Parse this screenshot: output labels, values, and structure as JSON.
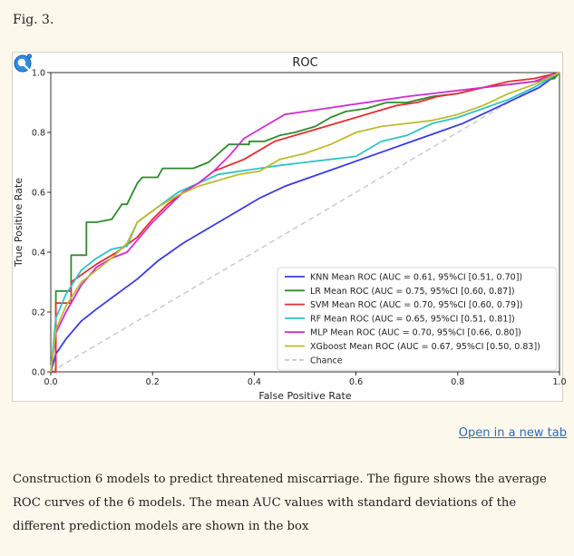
{
  "figure_label": "Fig. 3.",
  "open_link": "Open in a new tab",
  "caption": "Construction 6 models to predict threatened miscarriage. The figure shows the average ROC curves of the 6 models. The mean AUC values with standard deviations of the different prediction models are shown in the box",
  "icons": {
    "zoom": "magnifier-icon"
  },
  "colors": {
    "link": "#2a6db5",
    "background": "#fdf8ec"
  },
  "chart_data": {
    "type": "line",
    "title": "ROC",
    "xlabel": "False Positive Rate",
    "ylabel": "True Positive Rate",
    "xlim": [
      0,
      1
    ],
    "ylim": [
      0,
      1
    ],
    "xticks": [
      "0.0",
      "0.2",
      "0.4",
      "0.6",
      "0.8",
      "1.0"
    ],
    "yticks": [
      "0.0",
      "0.2",
      "0.4",
      "0.6",
      "0.8",
      "1.0"
    ],
    "legend_position": "lower-right",
    "grid": false,
    "series": [
      {
        "name": "KNN Mean ROC (AUC = 0.61, 95%CI [0.51, 0.70])",
        "color": "#3b3be6",
        "x": [
          0,
          0.01,
          0.03,
          0.06,
          0.09,
          0.13,
          0.17,
          0.21,
          0.26,
          0.31,
          0.36,
          0.41,
          0.46,
          0.51,
          0.56,
          0.61,
          0.66,
          0.71,
          0.76,
          0.81,
          0.86,
          0.91,
          0.96,
          1.0
        ],
        "y": [
          0,
          0.06,
          0.11,
          0.17,
          0.21,
          0.26,
          0.31,
          0.37,
          0.43,
          0.48,
          0.53,
          0.58,
          0.62,
          0.65,
          0.68,
          0.71,
          0.74,
          0.77,
          0.8,
          0.83,
          0.87,
          0.91,
          0.95,
          1.0
        ]
      },
      {
        "name": "LR Mean ROC (AUC = 0.75, 95%CI [0.60, 0.87])",
        "color": "#2e8b2e",
        "x": [
          0,
          0.01,
          0.01,
          0.04,
          0.04,
          0.07,
          0.07,
          0.09,
          0.12,
          0.14,
          0.15,
          0.17,
          0.18,
          0.21,
          0.22,
          0.25,
          0.28,
          0.31,
          0.35,
          0.39,
          0.39,
          0.42,
          0.45,
          0.48,
          0.52,
          0.55,
          0.58,
          0.62,
          0.66,
          0.7,
          0.75,
          0.8,
          0.85,
          0.9,
          0.95,
          0.99,
          1.0
        ],
        "y": [
          0,
          0,
          0.27,
          0.27,
          0.39,
          0.39,
          0.5,
          0.5,
          0.51,
          0.56,
          0.56,
          0.63,
          0.65,
          0.65,
          0.68,
          0.68,
          0.68,
          0.7,
          0.76,
          0.76,
          0.77,
          0.77,
          0.79,
          0.8,
          0.82,
          0.85,
          0.87,
          0.88,
          0.9,
          0.9,
          0.92,
          0.93,
          0.95,
          0.96,
          0.97,
          0.98,
          1.0
        ]
      },
      {
        "name": "SVM Mean ROC (AUC = 0.70, 95%CI [0.60, 0.79])",
        "color": "#e62e2e",
        "x": [
          0,
          0.01,
          0.01,
          0.04,
          0.04,
          0.09,
          0.13,
          0.17,
          0.2,
          0.23,
          0.26,
          0.29,
          0.32,
          0.35,
          0.38,
          0.41,
          0.44,
          0.48,
          0.52,
          0.56,
          0.6,
          0.64,
          0.68,
          0.72,
          0.76,
          0.8,
          0.85,
          0.9,
          0.95,
          1.0
        ],
        "y": [
          0,
          0,
          0.23,
          0.23,
          0.3,
          0.36,
          0.4,
          0.45,
          0.51,
          0.56,
          0.6,
          0.63,
          0.67,
          0.69,
          0.71,
          0.74,
          0.77,
          0.79,
          0.81,
          0.83,
          0.85,
          0.87,
          0.89,
          0.9,
          0.92,
          0.93,
          0.95,
          0.97,
          0.98,
          1.0
        ]
      },
      {
        "name": "RF Mean ROC (AUC = 0.65, 95%CI [0.51, 0.81])",
        "color": "#2ec4c4",
        "x": [
          0,
          0.01,
          0.03,
          0.06,
          0.09,
          0.12,
          0.15,
          0.17,
          0.21,
          0.25,
          0.29,
          0.33,
          0.37,
          0.41,
          0.45,
          0.5,
          0.55,
          0.6,
          0.65,
          0.7,
          0.75,
          0.8,
          0.85,
          0.9,
          0.95,
          1.0
        ],
        "y": [
          0,
          0.18,
          0.26,
          0.34,
          0.38,
          0.41,
          0.42,
          0.5,
          0.55,
          0.6,
          0.63,
          0.66,
          0.67,
          0.68,
          0.69,
          0.7,
          0.71,
          0.72,
          0.77,
          0.79,
          0.83,
          0.85,
          0.88,
          0.91,
          0.95,
          1.0
        ]
      },
      {
        "name": "MLP Mean ROC (AUC = 0.70, 95%CI [0.66, 0.80])",
        "color": "#d02ed0",
        "x": [
          0,
          0.01,
          0.03,
          0.06,
          0.09,
          0.12,
          0.15,
          0.17,
          0.2,
          0.23,
          0.26,
          0.29,
          0.32,
          0.35,
          0.38,
          0.42,
          0.46,
          0.5,
          0.54,
          0.58,
          0.62,
          0.66,
          0.7,
          0.75,
          0.8,
          0.85,
          0.9,
          0.95,
          1.0
        ],
        "y": [
          0,
          0.13,
          0.2,
          0.29,
          0.35,
          0.38,
          0.4,
          0.44,
          0.5,
          0.55,
          0.6,
          0.63,
          0.67,
          0.72,
          0.78,
          0.82,
          0.86,
          0.87,
          0.88,
          0.89,
          0.9,
          0.91,
          0.92,
          0.93,
          0.94,
          0.95,
          0.96,
          0.97,
          1.0
        ]
      },
      {
        "name": "XGboost Mean ROC (AUC = 0.67, 95%CI [0.50, 0.83])",
        "color": "#bcbc2e",
        "x": [
          0,
          0.01,
          0.03,
          0.06,
          0.09,
          0.12,
          0.15,
          0.17,
          0.21,
          0.25,
          0.29,
          0.33,
          0.37,
          0.41,
          0.45,
          0.5,
          0.55,
          0.6,
          0.65,
          0.7,
          0.75,
          0.8,
          0.85,
          0.9,
          0.95,
          1.0
        ],
        "y": [
          0,
          0.14,
          0.22,
          0.3,
          0.34,
          0.38,
          0.43,
          0.5,
          0.55,
          0.59,
          0.62,
          0.64,
          0.66,
          0.67,
          0.71,
          0.73,
          0.76,
          0.8,
          0.82,
          0.83,
          0.84,
          0.86,
          0.89,
          0.93,
          0.96,
          1.0
        ]
      },
      {
        "name": "Chance",
        "color": "#c8c8c8",
        "dashed": true,
        "x": [
          0,
          1
        ],
        "y": [
          0,
          1
        ]
      }
    ]
  }
}
